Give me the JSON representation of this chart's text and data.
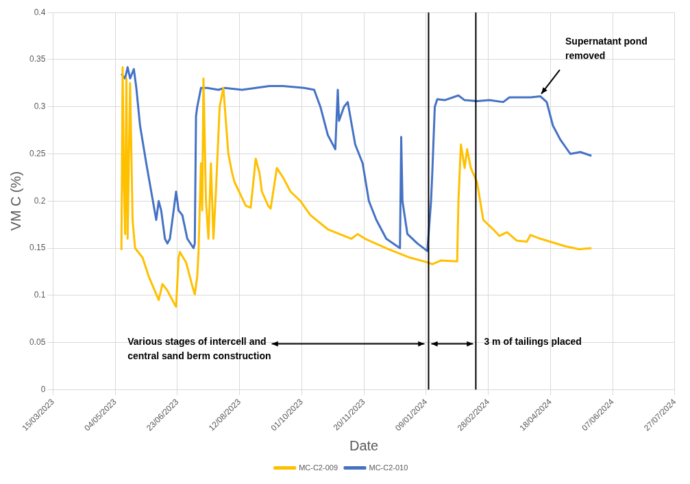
{
  "chart_data": {
    "type": "line",
    "xlabel": "Date",
    "ylabel": "VM C (%)",
    "xlim": [
      "2023-03-15",
      "2024-07-27"
    ],
    "xticks": [
      {
        "value": "2023-03-15",
        "label": "15/03/2023"
      },
      {
        "value": "2023-05-04",
        "label": "04/05/2023"
      },
      {
        "value": "2023-06-23",
        "label": "23/06/2023"
      },
      {
        "value": "2023-08-12",
        "label": "12/08/2023"
      },
      {
        "value": "2023-10-01",
        "label": "01/10/2023"
      },
      {
        "value": "2023-11-20",
        "label": "20/11/2023"
      },
      {
        "value": "2024-01-09",
        "label": "09/01/2024"
      },
      {
        "value": "2024-02-28",
        "label": "28/02/2024"
      },
      {
        "value": "2024-04-18",
        "label": "18/04/2024"
      },
      {
        "value": "2024-06-07",
        "label": "07/06/2024"
      },
      {
        "value": "2024-07-27",
        "label": "27/07/2024"
      }
    ],
    "ylim": [
      0,
      0.4
    ],
    "yticks": [
      0,
      0.05,
      0.1,
      0.15,
      0.2,
      0.25,
      0.3,
      0.35,
      0.4
    ],
    "grid": true,
    "legend": "bottom",
    "marker": "none",
    "line_style": "solid",
    "series": [
      {
        "name": "MC-C2-009",
        "color": "#ffc000",
        "x": [
          "2023-05-09",
          "2023-05-10",
          "2023-05-11",
          "2023-05-12",
          "2023-05-13",
          "2023-05-14",
          "2023-05-16",
          "2023-05-18",
          "2023-05-20",
          "2023-05-26",
          "2023-05-31",
          "2023-06-08",
          "2023-06-11",
          "2023-06-15",
          "2023-06-21",
          "2023-06-22",
          "2023-06-24",
          "2023-06-25",
          "2023-06-30",
          "2023-07-05",
          "2023-07-07",
          "2023-07-09",
          "2023-07-10",
          "2023-07-12",
          "2023-07-13",
          "2023-07-14",
          "2023-07-16",
          "2023-07-18",
          "2023-07-20",
          "2023-07-22",
          "2023-07-24",
          "2023-07-27",
          "2023-07-30",
          "2023-08-03",
          "2023-08-06",
          "2023-08-08",
          "2023-08-17",
          "2023-08-21",
          "2023-08-25",
          "2023-08-28",
          "2023-08-30",
          "2023-09-04",
          "2023-09-06",
          "2023-09-11",
          "2023-09-16",
          "2023-09-22",
          "2023-09-30",
          "2023-10-08",
          "2023-10-22",
          "2023-11-10",
          "2023-11-15",
          "2023-11-21",
          "2023-12-08",
          "2023-12-27",
          "2024-01-10",
          "2024-01-14",
          "2024-01-21",
          "2024-02-03",
          "2024-02-04",
          "2024-02-06",
          "2024-02-09",
          "2024-02-11",
          "2024-02-14",
          "2024-02-19",
          "2024-02-24",
          "2024-03-03",
          "2024-03-08",
          "2024-03-14",
          "2024-03-22",
          "2024-03-30",
          "2024-04-02",
          "2024-04-10",
          "2024-04-30",
          "2024-05-11",
          "2024-05-21"
        ],
        "values": [
          0.148,
          0.342,
          0.22,
          0.165,
          0.33,
          0.16,
          0.325,
          0.18,
          0.15,
          0.14,
          0.12,
          0.095,
          0.112,
          0.105,
          0.09,
          0.088,
          0.14,
          0.146,
          0.135,
          0.11,
          0.101,
          0.12,
          0.145,
          0.24,
          0.19,
          0.33,
          0.2,
          0.16,
          0.24,
          0.16,
          0.21,
          0.3,
          0.32,
          0.25,
          0.23,
          0.22,
          0.195,
          0.193,
          0.245,
          0.23,
          0.21,
          0.195,
          0.192,
          0.235,
          0.225,
          0.21,
          0.2,
          0.185,
          0.17,
          0.16,
          0.165,
          0.16,
          0.15,
          0.14,
          0.135,
          0.133,
          0.137,
          0.136,
          0.2,
          0.26,
          0.235,
          0.255,
          0.235,
          0.22,
          0.18,
          0.17,
          0.163,
          0.167,
          0.158,
          0.157,
          0.164,
          0.16,
          0.152,
          0.149,
          0.15
        ]
      },
      {
        "name": "MC-C2-010",
        "color": "#4472c4",
        "x": [
          "2023-05-09",
          "2023-05-12",
          "2023-05-14",
          "2023-05-16",
          "2023-05-19",
          "2023-05-21",
          "2023-05-24",
          "2023-05-29",
          "2023-06-02",
          "2023-06-06",
          "2023-06-08",
          "2023-06-10",
          "2023-06-13",
          "2023-06-15",
          "2023-06-17",
          "2023-06-22",
          "2023-06-24",
          "2023-06-27",
          "2023-07-01",
          "2023-07-06",
          "2023-07-07",
          "2023-07-08",
          "2023-07-09",
          "2023-07-12",
          "2023-07-17",
          "2023-07-26",
          "2023-07-31",
          "2023-08-14",
          "2023-08-25",
          "2023-09-05",
          "2023-09-16",
          "2023-10-03",
          "2023-10-11",
          "2023-10-16",
          "2023-10-22",
          "2023-10-28",
          "2023-10-30",
          "2023-10-31",
          "2023-11-04",
          "2023-11-07",
          "2023-11-09",
          "2023-11-13",
          "2023-11-19",
          "2023-11-24",
          "2023-11-30",
          "2023-12-08",
          "2023-12-19",
          "2023-12-20",
          "2023-12-21",
          "2023-12-25",
          "2024-01-02",
          "2024-01-10",
          "2024-01-13",
          "2024-01-14",
          "2024-01-16",
          "2024-01-18",
          "2024-01-24",
          "2024-02-04",
          "2024-02-09",
          "2024-02-19",
          "2024-02-29",
          "2024-03-11",
          "2024-03-16",
          "2024-04-02",
          "2024-04-10",
          "2024-04-15",
          "2024-04-20",
          "2024-04-26",
          "2024-05-04",
          "2024-05-12",
          "2024-05-21"
        ],
        "values": [
          0.335,
          0.33,
          0.342,
          0.33,
          0.34,
          0.32,
          0.28,
          0.24,
          0.21,
          0.18,
          0.2,
          0.19,
          0.16,
          0.155,
          0.16,
          0.21,
          0.19,
          0.185,
          0.16,
          0.15,
          0.155,
          0.29,
          0.3,
          0.32,
          0.32,
          0.318,
          0.32,
          0.318,
          0.32,
          0.322,
          0.322,
          0.32,
          0.318,
          0.3,
          0.27,
          0.255,
          0.318,
          0.285,
          0.3,
          0.305,
          0.29,
          0.26,
          0.24,
          0.2,
          0.18,
          0.16,
          0.15,
          0.268,
          0.2,
          0.165,
          0.155,
          0.147,
          0.2,
          0.23,
          0.3,
          0.308,
          0.307,
          0.312,
          0.307,
          0.306,
          0.307,
          0.305,
          0.31,
          0.31,
          0.311,
          0.305,
          0.28,
          0.265,
          0.25,
          0.252,
          0.248
        ]
      }
    ],
    "ref_lines": [
      {
        "axis": "x",
        "value": "2024-01-11",
        "color": "#000000"
      },
      {
        "axis": "x",
        "value": "2024-02-18",
        "color": "#000000"
      }
    ],
    "annotations": [
      "Various stages of intercell and central sand berm construction",
      {
        "text": "3 m of tailings placed",
        "x": "2024-02-18",
        "y": 0.05
      },
      {
        "text": "Supernatant pond removed",
        "x": "2024-04-09",
        "y": 0.31
      }
    ]
  }
}
